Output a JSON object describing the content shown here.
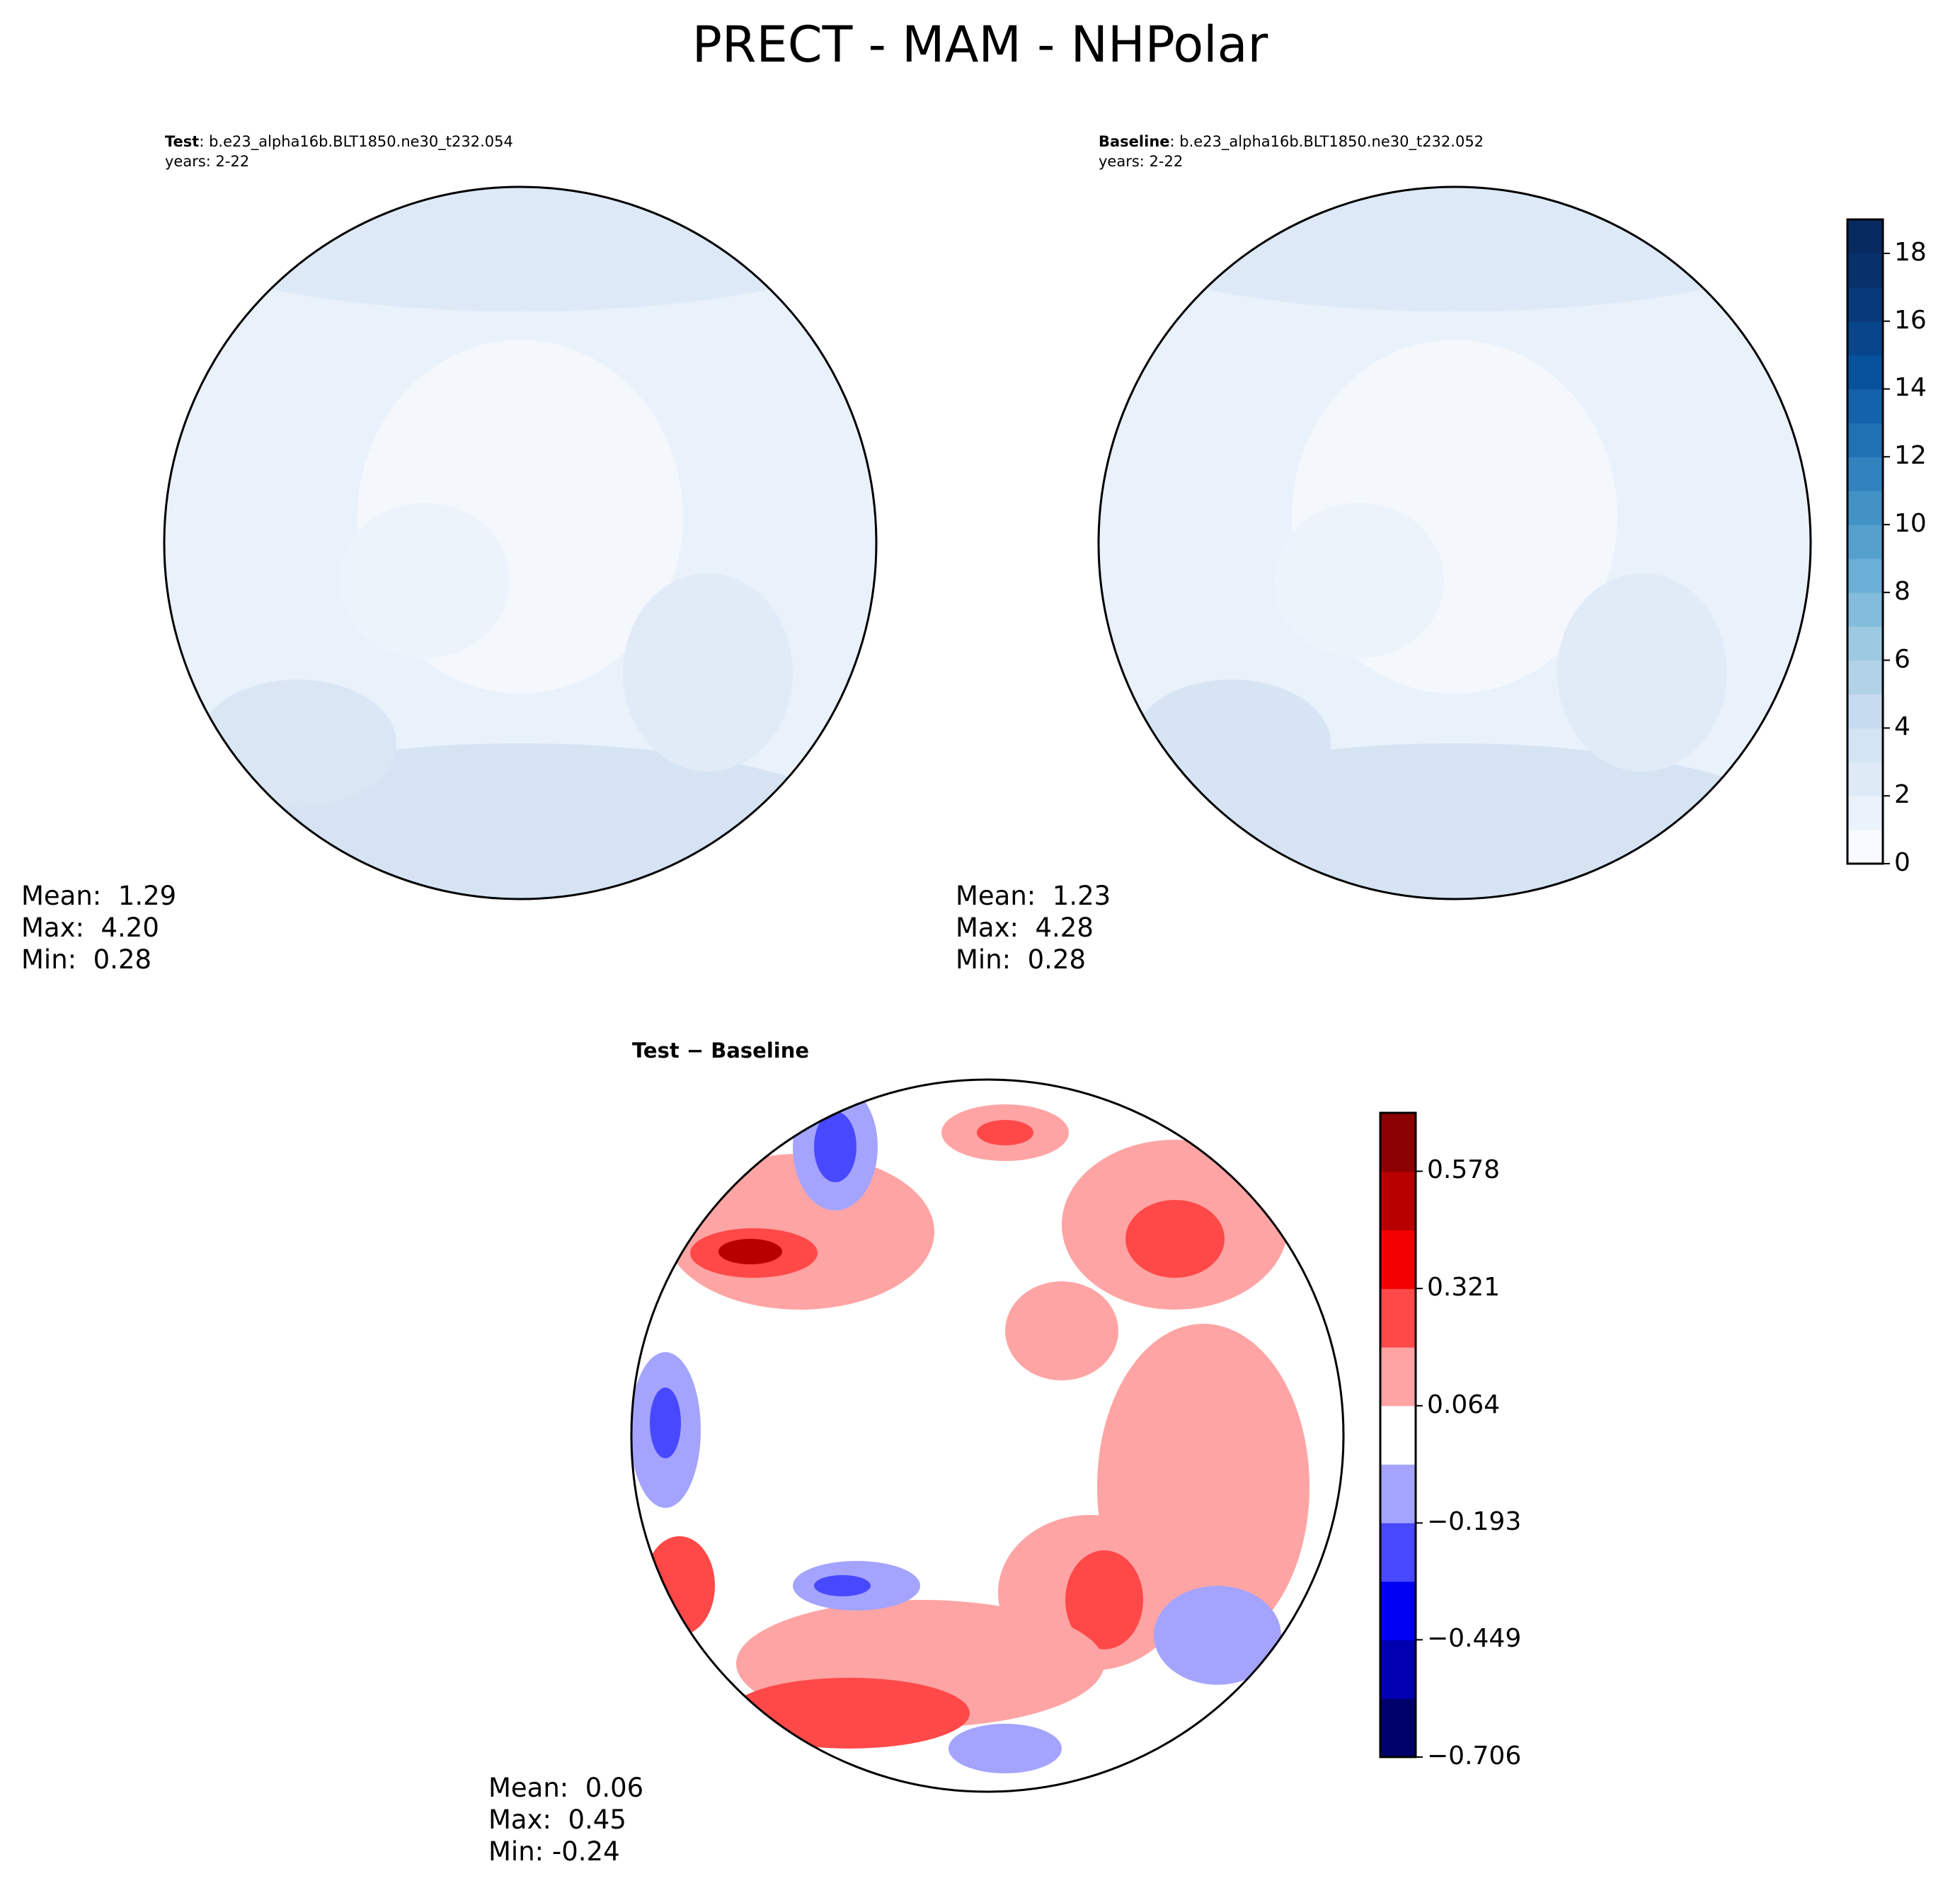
{
  "title": "PRECT - MAM - NHPolar",
  "panels": [
    {
      "id": "test",
      "label_bold": "Test",
      "label_rest": ": b.e23_alpha16b.BLT1850.ne30_t232.054",
      "years": "years: 2-22",
      "stats": {
        "mean": "Mean:  1.29",
        "max": "Max:  4.20",
        "min": "Min:  0.28"
      }
    },
    {
      "id": "baseline",
      "label_bold": "Baseline",
      "label_rest": ": b.e23_alpha16b.BLT1850.ne30_t232.052",
      "years": "years: 2-22",
      "stats": {
        "mean": "Mean:  1.23",
        "max": "Max:  4.28",
        "min": "Min:  0.28"
      }
    },
    {
      "id": "diff",
      "label_bold": "Test − Baseline",
      "stats": {
        "mean": "Mean:  0.06",
        "max": "Max:  0.45",
        "min": "Min: -0.24"
      }
    }
  ],
  "colorbars": {
    "precip": {
      "ticks": [
        "0",
        "2",
        "4",
        "6",
        "8",
        "10",
        "12",
        "14",
        "16",
        "18"
      ],
      "tick_values": [
        0,
        2,
        4,
        6,
        8,
        10,
        12,
        14,
        16,
        18
      ],
      "range": [
        0,
        19
      ],
      "levels": 19,
      "colors": [
        "#f7fbff",
        "#eaf3fb",
        "#deebf7",
        "#d3e4f3",
        "#c6dbef",
        "#b2d2e8",
        "#9ecae1",
        "#84bcdb",
        "#6baed6",
        "#56a0ce",
        "#4292c6",
        "#3282be",
        "#2171b5",
        "#1462a9",
        "#08519c",
        "#08458a",
        "#083a7a",
        "#08306b",
        "#072a60"
      ]
    },
    "diff": {
      "ticks": [
        "0.578",
        "0.321",
        "0.064",
        "−0.193",
        "−0.449",
        "−0.706"
      ],
      "tick_values": [
        0.578,
        0.321,
        0.064,
        -0.193,
        -0.449,
        -0.706
      ],
      "range": [
        -0.706,
        0.706
      ],
      "levels": 11,
      "colors": [
        "#00006b",
        "#0000b0",
        "#0000f2",
        "#4848ff",
        "#a4a4ff",
        "#ffffff",
        "#ffa4a4",
        "#ff4848",
        "#f20000",
        "#b80000",
        "#8b0000"
      ]
    }
  },
  "chart_data": [
    {
      "type": "heatmap",
      "title": "Test: b.e23_alpha16b.BLT1850.ne30_t232.054",
      "projection": "north polar stereographic",
      "variable": "PRECT",
      "season": "MAM",
      "years": "2-22",
      "mean": 1.29,
      "max": 4.2,
      "min": 0.28,
      "colorbar_range": [
        0,
        19
      ]
    },
    {
      "type": "heatmap",
      "title": "Baseline: b.e23_alpha16b.BLT1850.ne30_t232.052",
      "projection": "north polar stereographic",
      "variable": "PRECT",
      "season": "MAM",
      "years": "2-22",
      "mean": 1.23,
      "max": 4.28,
      "min": 0.28,
      "colorbar_range": [
        0,
        19
      ]
    },
    {
      "type": "heatmap",
      "title": "Test − Baseline",
      "projection": "north polar stereographic",
      "mean": 0.06,
      "max": 0.45,
      "min": -0.24,
      "colorbar_ticks": [
        0.578,
        0.321,
        0.064,
        -0.193,
        -0.449,
        -0.706
      ]
    }
  ]
}
